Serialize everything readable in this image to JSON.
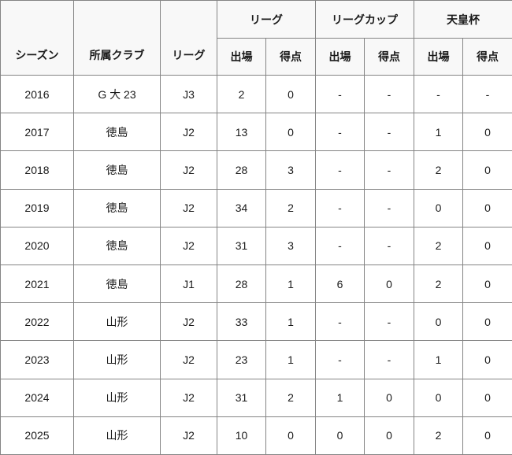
{
  "table": {
    "header": {
      "season_label": "シーズン",
      "club_label": "所属クラブ",
      "league_label": "リーグ",
      "groups": [
        {
          "label": "リーグ"
        },
        {
          "label": "リーグカップ"
        },
        {
          "label": "天皇杯"
        }
      ],
      "sub": {
        "apps": "出場",
        "goals": "得点"
      }
    },
    "rows": [
      [
        "2016",
        "G 大 23",
        "J3",
        "2",
        "0",
        "-",
        "-",
        "-",
        "-"
      ],
      [
        "2017",
        "徳島",
        "J2",
        "13",
        "0",
        "-",
        "-",
        "1",
        "0"
      ],
      [
        "2018",
        "徳島",
        "J2",
        "28",
        "3",
        "-",
        "-",
        "2",
        "0"
      ],
      [
        "2019",
        "徳島",
        "J2",
        "34",
        "2",
        "-",
        "-",
        "0",
        "0"
      ],
      [
        "2020",
        "徳島",
        "J2",
        "31",
        "3",
        "-",
        "-",
        "2",
        "0"
      ],
      [
        "2021",
        "徳島",
        "J1",
        "28",
        "1",
        "6",
        "0",
        "2",
        "0"
      ],
      [
        "2022",
        "山形",
        "J2",
        "33",
        "1",
        "-",
        "-",
        "0",
        "0"
      ],
      [
        "2023",
        "山形",
        "J2",
        "23",
        "1",
        "-",
        "-",
        "1",
        "0"
      ],
      [
        "2024",
        "山形",
        "J2",
        "31",
        "2",
        "1",
        "0",
        "0",
        "0"
      ],
      [
        "2025",
        "山形",
        "J2",
        "10",
        "0",
        "0",
        "0",
        "2",
        "0"
      ]
    ],
    "column_names": [
      "cell-season",
      "cell-club",
      "cell-league-tier",
      "cell-league-apps",
      "cell-league-goals",
      "cell-league-cup-apps",
      "cell-league-cup-goals",
      "cell-emperors-cup-apps",
      "cell-emperors-cup-goals"
    ]
  },
  "colors": {
    "border": "#848484",
    "header_bg": "#f8f8f8",
    "cell_bg": "#ffffff",
    "text": "#1a1a1a"
  }
}
